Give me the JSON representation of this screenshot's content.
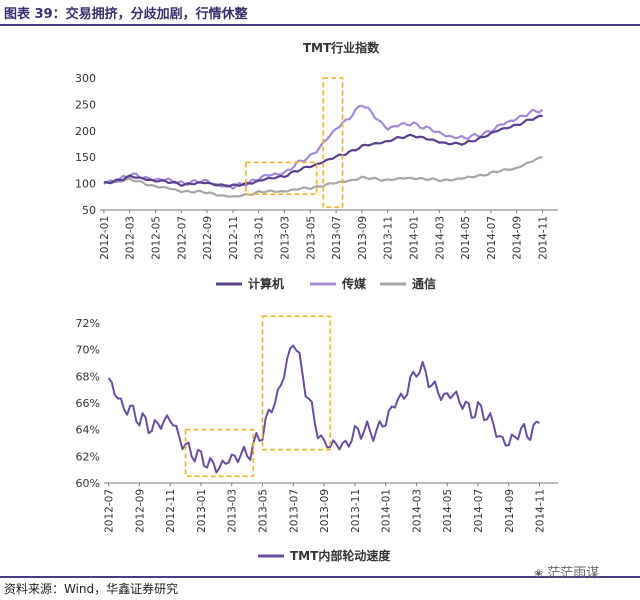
{
  "header": {
    "title": "图表 39：交易拥挤，分歧加剧，行情休整"
  },
  "footer": {
    "source": "资料来源：Wind，华鑫证券研究"
  },
  "watermark": {
    "text": "茫茫雨谋"
  },
  "colors": {
    "computer": "#5b3f8c",
    "media": "#a48bd9",
    "telecom": "#a6a6a6",
    "rotation": "#6a4e9e",
    "highlight": "#f2b230",
    "frame": "#4a3a86"
  },
  "chart_data": [
    {
      "type": "line",
      "title": "TMT行业指数",
      "xlabel": "",
      "ylabel": "",
      "x": [
        "2012-01",
        "2012-03",
        "2012-05",
        "2012-07",
        "2012-09",
        "2012-11",
        "2013-01",
        "2013-03",
        "2013-05",
        "2013-07",
        "2013-09",
        "2013-11",
        "2014-01",
        "2014-03",
        "2014-05",
        "2014-07",
        "2014-09",
        "2014-11"
      ],
      "ylim": [
        50,
        300
      ],
      "yticks": [
        50,
        100,
        150,
        200,
        250,
        300
      ],
      "legend_position": "bottom",
      "series": [
        {
          "name": "计算机",
          "values": [
            100,
            113,
            106,
            99,
            101,
            95,
            105,
            115,
            133,
            150,
            170,
            181,
            192,
            178,
            175,
            195,
            212,
            228
          ]
        },
        {
          "name": "传媒",
          "values": [
            100,
            116,
            109,
            102,
            104,
            92,
            110,
            122,
            152,
            202,
            250,
            205,
            215,
            195,
            185,
            200,
            225,
            240
          ]
        },
        {
          "name": "通信",
          "values": [
            100,
            108,
            95,
            86,
            83,
            74,
            84,
            86,
            92,
            101,
            111,
            107,
            111,
            106,
            110,
            120,
            130,
            150
          ]
        }
      ],
      "highlight_boxes": [
        {
          "x_from": "2012-12",
          "x_to": "2013-05",
          "y_from": 80,
          "y_to": 140
        },
        {
          "x_from": "2013-06",
          "x_to": "2013-07",
          "y_from": 55,
          "y_to": 300
        }
      ]
    },
    {
      "type": "line",
      "title": "",
      "xlabel": "",
      "ylabel": "",
      "x": [
        "2012-07",
        "2012-09",
        "2012-11",
        "2013-01",
        "2013-03",
        "2013-05",
        "2013-07",
        "2013-09",
        "2013-11",
        "2014-01",
        "2014-03",
        "2014-05",
        "2014-07",
        "2014-09",
        "2014-11"
      ],
      "ylim": [
        60,
        72
      ],
      "yticks": [
        "60%",
        "62%",
        "64%",
        "66%",
        "68%",
        "70%",
        "72%"
      ],
      "legend_position": "bottom",
      "series": [
        {
          "name": "TMT内部轮动速度",
          "values": [
            67.5,
            64.5,
            64.5,
            61.5,
            61.5,
            63.5,
            70.5,
            62.5,
            63.5,
            64.5,
            68.5,
            66.5,
            65.5,
            63,
            64.5
          ]
        }
      ],
      "highlight_boxes": [
        {
          "x_from": "2012-12",
          "x_to": "2013-04",
          "y_from": 60.5,
          "y_to": 64
        },
        {
          "x_from": "2013-05",
          "x_to": "2013-09",
          "y_from": 62.5,
          "y_to": 72.5
        }
      ]
    }
  ]
}
